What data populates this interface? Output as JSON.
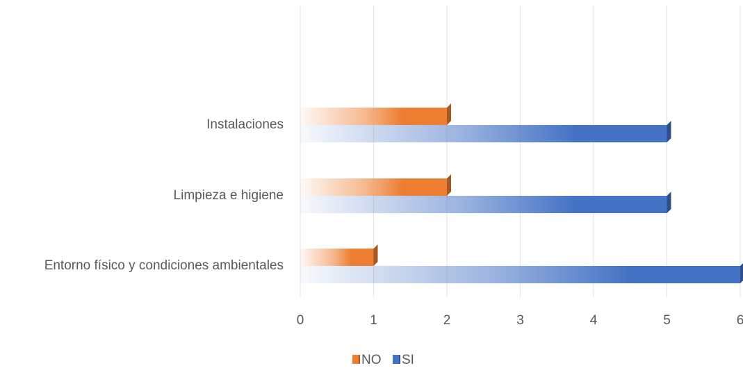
{
  "chart_data": {
    "type": "bar",
    "orientation": "horizontal",
    "categories": [
      "Entorno físico y condiciones ambientales",
      "Limpieza e higiene",
      "Instalaciones"
    ],
    "series": [
      {
        "name": "NO",
        "values": [
          1,
          2,
          2
        ],
        "color": "#ED7D31"
      },
      {
        "name": "SI",
        "values": [
          6,
          5,
          5
        ],
        "color": "#4472C4"
      }
    ],
    "xlim": [
      0,
      6
    ],
    "x_ticks": [
      "0",
      "1",
      "2",
      "3",
      "4",
      "5",
      "6"
    ],
    "grid": true,
    "legend_position": "bottom",
    "title": "",
    "xlabel": "",
    "ylabel": ""
  }
}
